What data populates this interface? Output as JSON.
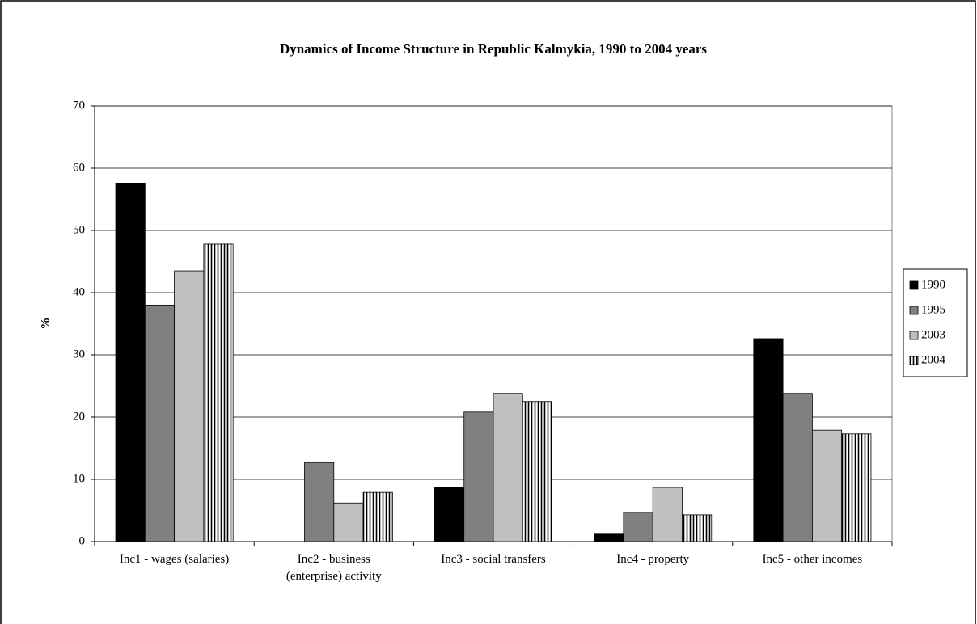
{
  "chart_data": {
    "type": "bar",
    "title": "Dynamics of Income Structure in Republic Kalmykia, 1990 to 2004 years",
    "y_label": "%",
    "categories": [
      "Inc1 - wages (salaries)",
      "Inc2 - business\n(enterprise) activity",
      "Inc3 -  social transfers",
      "Inc4 - property",
      "Inc5 - other incomes"
    ],
    "series": [
      {
        "name": "1990",
        "color": "#000000",
        "values": [
          57.5,
          0,
          8.7,
          1.2,
          32.6
        ]
      },
      {
        "name": "1995",
        "color": "#808080",
        "values": [
          38,
          12.7,
          20.8,
          4.7,
          23.8
        ]
      },
      {
        "name": "2003",
        "color": "#c0c0c0",
        "values": [
          43.5,
          6.2,
          23.8,
          8.7,
          17.9
        ]
      },
      {
        "name": "2004",
        "color": "#000000",
        "pattern": "vertical-lines",
        "values": [
          47.8,
          7.9,
          22.5,
          4.3,
          17.3
        ]
      }
    ],
    "ylim": [
      0,
      70
    ],
    "yticks": [
      0,
      10,
      20,
      30,
      40,
      50,
      60,
      70
    ],
    "grid": true,
    "legend": "right"
  }
}
